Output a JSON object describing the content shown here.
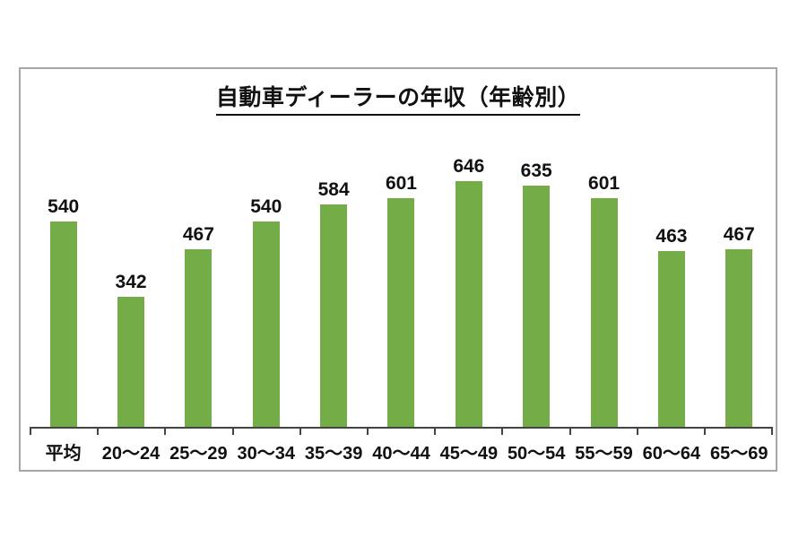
{
  "chart_data": {
    "type": "bar",
    "title": "自動車ディーラーの年収（年齢別）",
    "categories": [
      "平均",
      "20〜24",
      "25〜29",
      "30〜34",
      "35〜39",
      "40〜44",
      "45〜49",
      "50〜54",
      "55〜59",
      "60〜64",
      "65〜69"
    ],
    "values": [
      540,
      342,
      467,
      540,
      584,
      601,
      646,
      635,
      601,
      463,
      467
    ],
    "xlabel": "",
    "ylabel": "",
    "ylim": [
      0,
      680
    ],
    "grid": "off",
    "legend": "none",
    "data_labels": "above-bars",
    "colors": {
      "bar": "#74ac48",
      "axis": "#444444",
      "frame_border": "#a6a6a6",
      "text": "#111111",
      "background": "#ffffff"
    }
  }
}
